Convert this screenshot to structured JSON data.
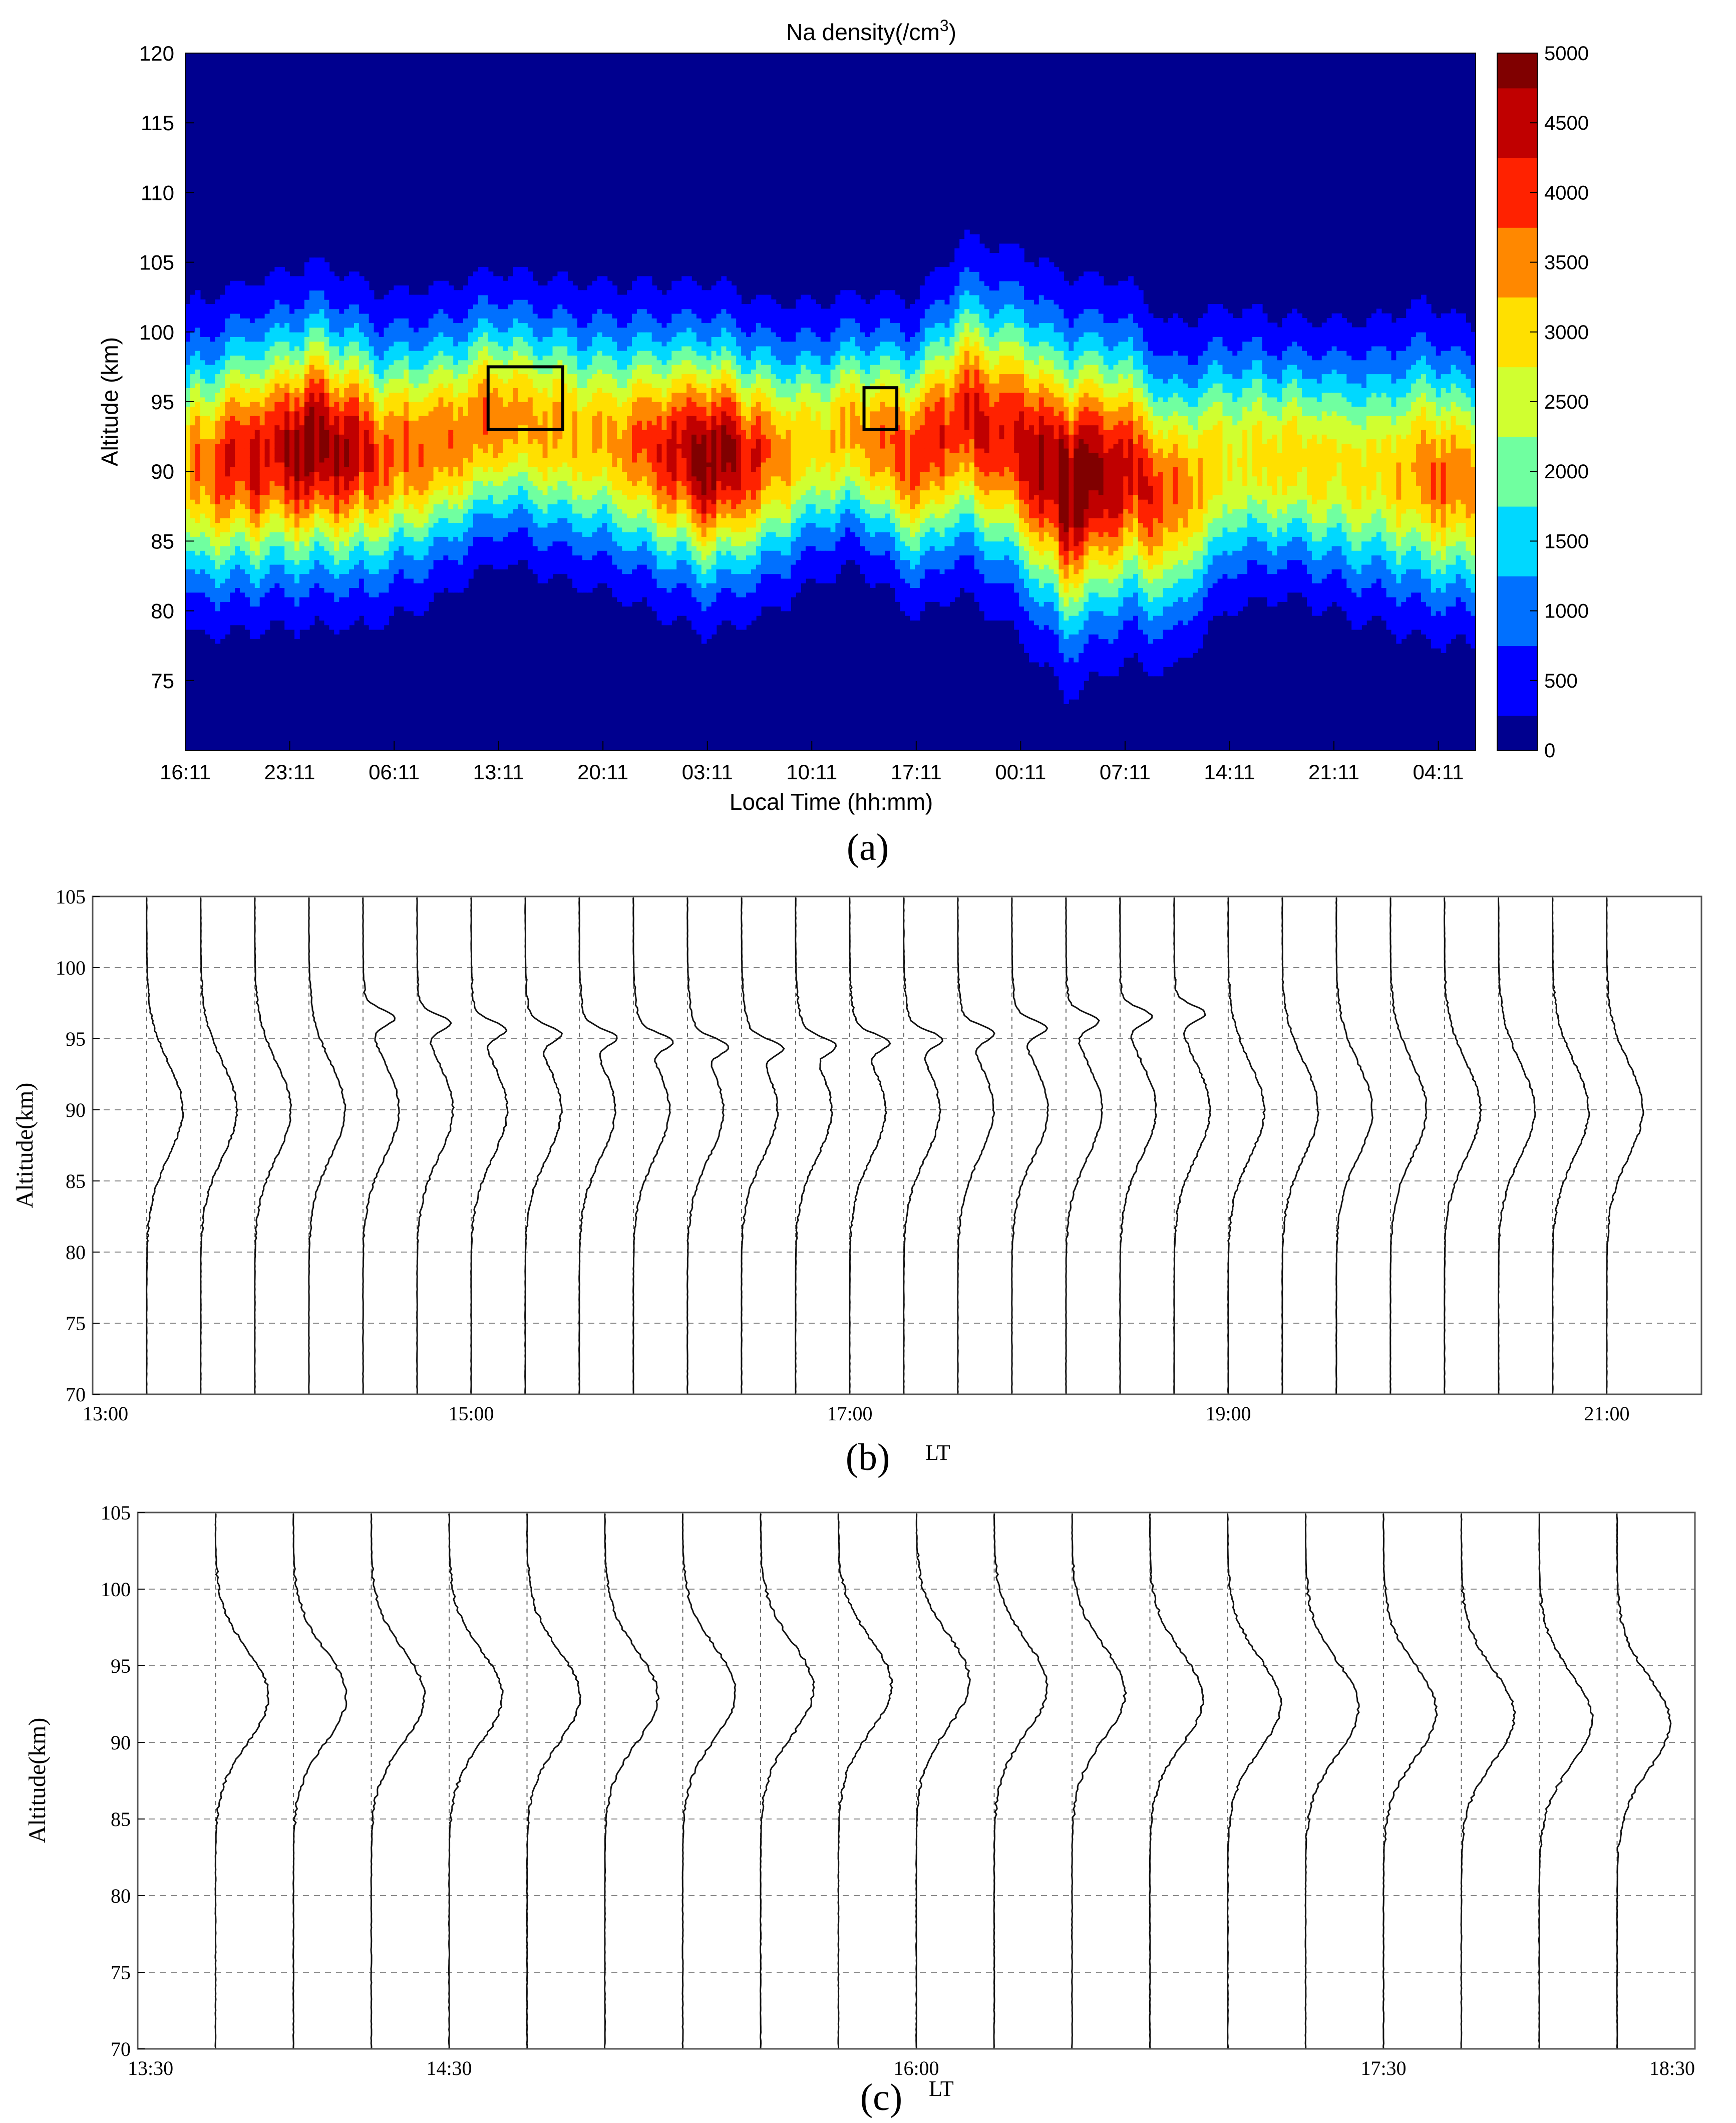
{
  "chart_data": [
    {
      "type": "heatmap",
      "panel_label": "(a)",
      "title": "Na density(/cm",
      "title_superscript": "3",
      "title_suffix": ")",
      "xlabel": "Local Time (hh:mm)",
      "ylabel": "Altitude (km)",
      "x_tick_labels": [
        "16:11",
        "23:11",
        "06:11",
        "13:11",
        "20:11",
        "03:11",
        "10:11",
        "17:11",
        "00:11",
        "07:11",
        "14:11",
        "21:11",
        "04:11"
      ],
      "x_hours_from_start": [
        0,
        7,
        14,
        21,
        28,
        35,
        42,
        49,
        56,
        63,
        70,
        77,
        84
      ],
      "x_range_hours": [
        0,
        86.5
      ],
      "y_ticks": [
        75,
        80,
        85,
        90,
        95,
        100,
        105,
        110,
        115,
        120
      ],
      "ylim": [
        70,
        120
      ],
      "colorbar": {
        "ticks": [
          0,
          500,
          1000,
          1500,
          2000,
          2500,
          3000,
          3500,
          4000,
          4500,
          5000
        ],
        "range": [
          0,
          5000
        ],
        "colors": [
          "#00008f",
          "#0000ff",
          "#0070ff",
          "#00d8ff",
          "#70ffa0",
          "#d0ff30",
          "#ffe000",
          "#ff8800",
          "#ff2200",
          "#c00000",
          "#800000"
        ]
      },
      "layer": {
        "centroid_km": [
          [
            0,
            90
          ],
          [
            4,
            91
          ],
          [
            9,
            92
          ],
          [
            13,
            91
          ],
          [
            17,
            92
          ],
          [
            21,
            94
          ],
          [
            25,
            93
          ],
          [
            30,
            92
          ],
          [
            35,
            91
          ],
          [
            39,
            91
          ],
          [
            45,
            93
          ],
          [
            49,
            91
          ],
          [
            52,
            94
          ],
          [
            56,
            92
          ],
          [
            59,
            89
          ],
          [
            63,
            90
          ],
          [
            66,
            88
          ],
          [
            70,
            91
          ],
          [
            74,
            91
          ],
          [
            79,
            90
          ],
          [
            83,
            90
          ],
          [
            86.5,
            89
          ]
        ],
        "width_km": [
          [
            0,
            5.2
          ],
          [
            9,
            5.4
          ],
          [
            21,
            4.6
          ],
          [
            35,
            5.2
          ],
          [
            45,
            4.3
          ],
          [
            52,
            5.4
          ],
          [
            59,
            6.2
          ],
          [
            66,
            5.4
          ],
          [
            74,
            4.5
          ],
          [
            83,
            5.3
          ],
          [
            86.5,
            5.0
          ]
        ],
        "peak_density": [
          [
            0,
            3300
          ],
          [
            3,
            4000
          ],
          [
            9,
            4800
          ],
          [
            14,
            3600
          ],
          [
            21,
            3500
          ],
          [
            28,
            3000
          ],
          [
            35,
            5000
          ],
          [
            42,
            2800
          ],
          [
            49,
            3800
          ],
          [
            56,
            4400
          ],
          [
            60,
            5000
          ],
          [
            63,
            4300
          ],
          [
            70,
            2700
          ],
          [
            74,
            2900
          ],
          [
            80,
            2800
          ],
          [
            84,
            3600
          ],
          [
            86.5,
            3200
          ]
        ]
      },
      "boxes": [
        {
          "x_hours": [
            20.3,
            25.3
          ],
          "y_km": [
            93,
            97.5
          ]
        },
        {
          "x_hours": [
            45.5,
            47.7
          ],
          "y_km": [
            93,
            96
          ]
        }
      ]
    },
    {
      "type": "line",
      "panel_label": "(b)",
      "xlabel": "LT",
      "ylabel": "Altitude(km)",
      "x_tick_labels": [
        "13:00",
        "15:00",
        "17:00",
        "19:00",
        "21:00"
      ],
      "x_hours": [
        13,
        15,
        17,
        19,
        21
      ],
      "x_range_hours": [
        13,
        21.5
      ],
      "y_ticks": [
        70,
        75,
        80,
        85,
        90,
        95,
        100,
        105
      ],
      "ylim": [
        70,
        105
      ],
      "profile_interval_hours": 0.2857,
      "profile_count": 28,
      "profile_half_width_hours": 0.19,
      "main_layer_peak_km": 90,
      "main_layer_width_km": 3.3,
      "sporadic_layer": {
        "times_hours": [
          14.5,
          15.1,
          15.7,
          16.3,
          16.8,
          17.3,
          17.8,
          18.3,
          18.7
        ],
        "altitudes_km": [
          96.5,
          95.5,
          95,
          94.3,
          94.6,
          95,
          95.7,
          96.5,
          96.8
        ]
      }
    },
    {
      "type": "line",
      "panel_label": "(c)",
      "xlabel": "LT",
      "ylabel": "Altitude(km)",
      "x_tick_labels": [
        "13:30",
        "14:30",
        "16:00",
        "17:30",
        "18:30"
      ],
      "x_hours": [
        13.5,
        14.5,
        16,
        17.5,
        18.5
      ],
      "x_range_hours": [
        13.5,
        18.5
      ],
      "y_ticks": [
        70,
        75,
        80,
        85,
        90,
        95,
        100,
        105
      ],
      "ylim": [
        70,
        105
      ],
      "profile_interval_hours": 0.25,
      "profile_count": 19,
      "profile_half_width_hours": 0.17,
      "main_layer_peak_km": [
        [
          13.5,
          93
        ],
        [
          15,
          93
        ],
        [
          16,
          94
        ],
        [
          17,
          92.5
        ],
        [
          18.5,
          91
        ]
      ],
      "main_layer_width_km": 3.0
    }
  ]
}
